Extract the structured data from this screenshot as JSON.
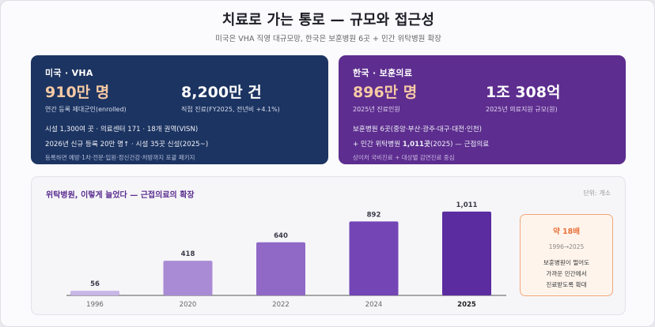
{
  "header": {
    "title": "치료로 가는 통로 — 규모와 접근성",
    "subtitle": "미국은 VHA 직영 대규모망, 한국은 보훈병원 6곳 + 민간 위탁병원 확장"
  },
  "us_card": {
    "title": "미국 · VHA",
    "stat1_value": "910만 명",
    "stat1_label": "연간 등록 제대군인(enrolled)",
    "stat2_value": "8,200만 건",
    "stat2_label": "직접 진료(FY2025, 전년비 +4.1%)",
    "line1": "시설 1,300여 곳 · 의료센터 171 · 18개 권역(VISN)",
    "line2": "2026년 신규 등록 20만 명↑ · 시설 35곳 신설(2025~)",
    "note": "등록하면 예방·1차·전문·입원·정신건강·처방까지 포괄 패키지"
  },
  "kr_card": {
    "title": "한국 · 보훈의료",
    "stat1_value": "896만 명",
    "stat1_label": "2025년 진료인원",
    "stat2_value": "1조 308억",
    "stat2_label": "2025년 의료지원 규모(원)",
    "line1": "보훈병원 6곳(중앙·부산·광주·대구·대전·인천)",
    "line2_prefix": "+ 민간 위탁병원 ",
    "line2_bold": "1,011곳",
    "line2_suffix": "(2025) — 근접의료",
    "note": "상이처 국비진료 + 대상별 감면진료 중심"
  },
  "chart_panel": {
    "title": "위탁병원, 이렇게 늘었다 — 근접의료의 확장",
    "unit": "단위: 개소"
  },
  "chart_data": {
    "type": "bar",
    "title": "위탁병원, 이렇게 늘었다 — 근접의료의 확장",
    "categories": [
      "1996",
      "2020",
      "2022",
      "2024",
      "2025"
    ],
    "values": [
      56,
      418,
      640,
      892,
      1011
    ],
    "value_labels": [
      "56",
      "418",
      "640",
      "892",
      "1,011"
    ],
    "ylabel": "단위: 개소",
    "ylim": [
      0,
      1100
    ],
    "highlight_category": "2025",
    "colors": [
      "#c8b6e6",
      "#a98bd5",
      "#9069c6",
      "#7345b5",
      "#5b2ba0"
    ],
    "grid": false
  },
  "callout": {
    "ratio": "약 18배",
    "years": "1996→2025",
    "desc_line1": "보훈병원이 멀어도",
    "desc_line2": "가까운 민간에서",
    "desc_line3": "진료받도록 확대"
  },
  "colors": {
    "us_card_bg": "#1c3461",
    "kr_card_bg": "#5d2d8f",
    "accent_orange": "#f7c9a4",
    "chart_title": "#5a2d8f"
  }
}
